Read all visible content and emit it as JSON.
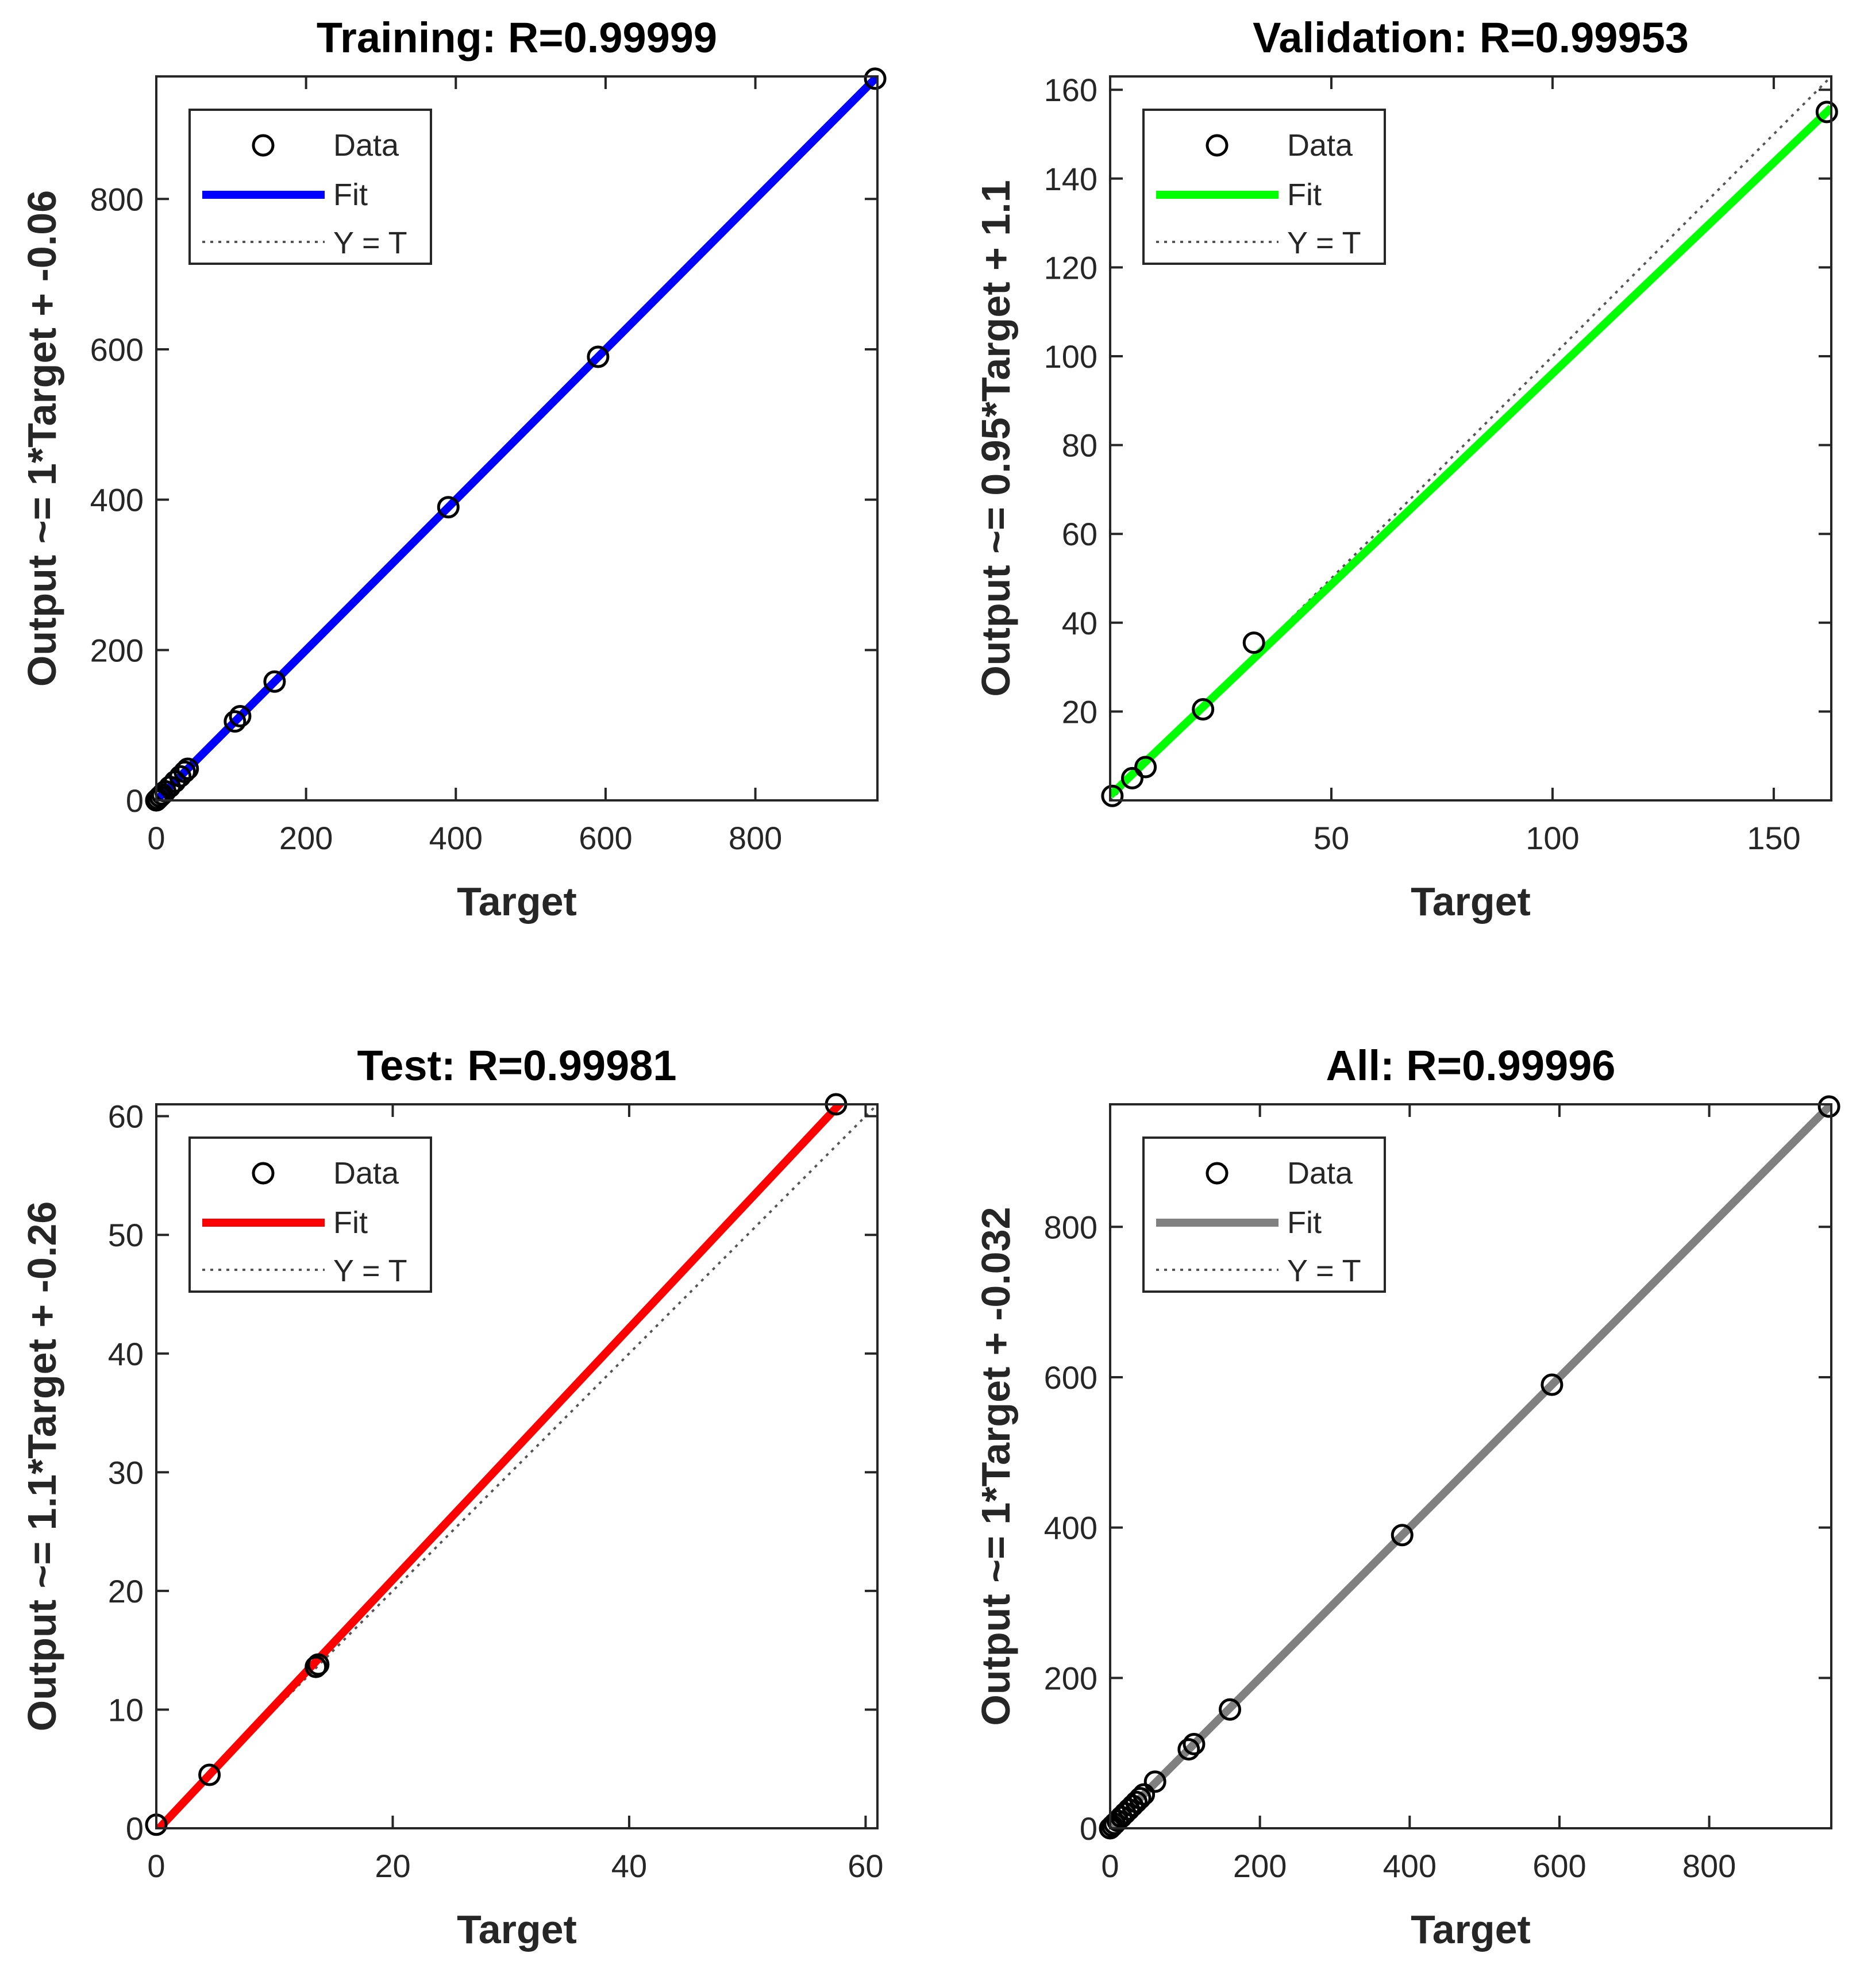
{
  "chart_data": [
    {
      "type": "scatter",
      "title": "Training: R=0.99999",
      "xlabel": "Target",
      "ylabel": "Output ~= 1*Target + -0.06",
      "xlim": [
        0,
        963
      ],
      "ylim": [
        0,
        963
      ],
      "xticks": [
        0,
        200,
        400,
        600,
        800
      ],
      "yticks": [
        0,
        200,
        400,
        600,
        800
      ],
      "fit": {
        "slope": 1,
        "intercept": -0.06
      },
      "fit_color": "#0000FF",
      "legend_position": "top-left",
      "legend": [
        "Data",
        "Fit",
        "Y = T"
      ],
      "points": [
        {
          "x": 0,
          "y": 0
        },
        {
          "x": 2,
          "y": 2
        },
        {
          "x": 5,
          "y": 5
        },
        {
          "x": 8,
          "y": 8
        },
        {
          "x": 12,
          "y": 12
        },
        {
          "x": 18,
          "y": 18
        },
        {
          "x": 25,
          "y": 25
        },
        {
          "x": 32,
          "y": 32
        },
        {
          "x": 38,
          "y": 38
        },
        {
          "x": 42,
          "y": 42
        },
        {
          "x": 105,
          "y": 105
        },
        {
          "x": 112,
          "y": 112
        },
        {
          "x": 158,
          "y": 158
        },
        {
          "x": 390,
          "y": 390
        },
        {
          "x": 590,
          "y": 590
        },
        {
          "x": 960,
          "y": 960
        }
      ]
    },
    {
      "type": "scatter",
      "title": "Validation: R=0.99953",
      "xlabel": "Target",
      "ylabel": "Output ~= 0.95*Target + 1.1",
      "xlim": [
        0,
        163
      ],
      "ylim": [
        0,
        163
      ],
      "xticks": [
        50,
        100,
        150
      ],
      "yticks": [
        20,
        40,
        60,
        80,
        100,
        120,
        140,
        160
      ],
      "fit": {
        "slope": 0.95,
        "intercept": 1.1
      },
      "fit_color": "#00FF00",
      "legend_position": "top-left",
      "legend": [
        "Data",
        "Fit",
        "Y = T"
      ],
      "points": [
        {
          "x": 0.5,
          "y": 1
        },
        {
          "x": 5,
          "y": 5
        },
        {
          "x": 8,
          "y": 7.5
        },
        {
          "x": 21,
          "y": 20.5
        },
        {
          "x": 32.5,
          "y": 35.5
        },
        {
          "x": 162,
          "y": 155
        }
      ]
    },
    {
      "type": "scatter",
      "title": "Test: R=0.99981",
      "xlabel": "Target",
      "ylabel": "Output ~= 1.1*Target + -0.26",
      "xlim": [
        0,
        61
      ],
      "ylim": [
        0,
        61
      ],
      "xticks": [
        0,
        20,
        40,
        60
      ],
      "yticks": [
        0,
        10,
        20,
        30,
        40,
        50,
        60
      ],
      "fit": {
        "slope": 1.06,
        "intercept": -0.26
      },
      "fit_color": "#FF0000",
      "legend_position": "top-left",
      "legend": [
        "Data",
        "Fit",
        "Y = T"
      ],
      "points": [
        {
          "x": 0,
          "y": 0.3
        },
        {
          "x": 4.5,
          "y": 4.5
        },
        {
          "x": 13.5,
          "y": 13.6
        },
        {
          "x": 13.7,
          "y": 13.8
        },
        {
          "x": 57.5,
          "y": 61
        }
      ]
    },
    {
      "type": "scatter",
      "title": "All: R=0.99996",
      "xlabel": "Target",
      "ylabel": "Output ~= 1*Target + -0.032",
      "xlim": [
        0,
        963
      ],
      "ylim": [
        0,
        963
      ],
      "xticks": [
        0,
        200,
        400,
        600,
        800
      ],
      "yticks": [
        0,
        200,
        400,
        600,
        800
      ],
      "fit": {
        "slope": 1,
        "intercept": -0.032
      },
      "fit_color": "#808080",
      "legend_position": "top-left",
      "legend": [
        "Data",
        "Fit",
        "Y = T"
      ],
      "points": [
        {
          "x": 0,
          "y": 0
        },
        {
          "x": 3,
          "y": 3
        },
        {
          "x": 6,
          "y": 6
        },
        {
          "x": 10,
          "y": 10
        },
        {
          "x": 15,
          "y": 15
        },
        {
          "x": 20,
          "y": 20
        },
        {
          "x": 25,
          "y": 25
        },
        {
          "x": 30,
          "y": 30
        },
        {
          "x": 35,
          "y": 35
        },
        {
          "x": 40,
          "y": 40
        },
        {
          "x": 45,
          "y": 45
        },
        {
          "x": 60,
          "y": 62
        },
        {
          "x": 105,
          "y": 105
        },
        {
          "x": 112,
          "y": 112
        },
        {
          "x": 160,
          "y": 158
        },
        {
          "x": 390,
          "y": 390
        },
        {
          "x": 590,
          "y": 590
        },
        {
          "x": 960,
          "y": 960
        }
      ]
    }
  ]
}
